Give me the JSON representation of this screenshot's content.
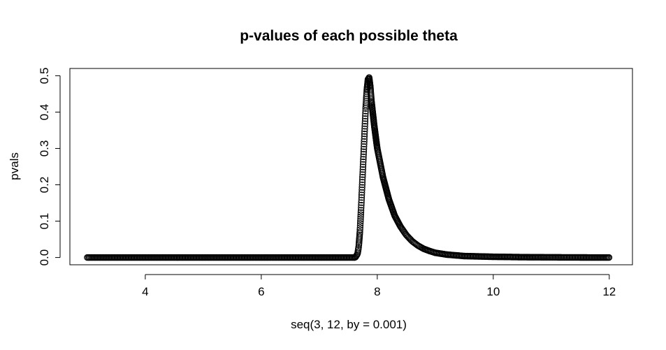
{
  "chart_data": {
    "type": "scatter",
    "title": "p-values of each possible theta",
    "xlabel": "seq(3, 12, by = 0.001)",
    "ylabel": "pvals",
    "xlim": [
      2.7,
      12.4
    ],
    "ylim": [
      -0.02,
      0.52
    ],
    "x_ticks": [
      4,
      6,
      8,
      10,
      12
    ],
    "y_ticks": [
      0.0,
      0.1,
      0.2,
      0.3,
      0.4,
      0.5
    ],
    "x_tick_labels": [
      "4",
      "6",
      "8",
      "10",
      "12"
    ],
    "y_tick_labels": [
      "0.0",
      "0.1",
      "0.2",
      "0.3",
      "0.4",
      "0.5"
    ],
    "grid": false,
    "legend": "none",
    "marker": "open-circle",
    "color": "#000000",
    "points": [
      [
        3.0,
        0.0
      ],
      [
        4.0,
        0.0
      ],
      [
        5.0,
        0.0
      ],
      [
        6.0,
        0.0
      ],
      [
        7.0,
        0.0
      ],
      [
        7.5,
        0.0
      ],
      [
        7.62,
        0.0
      ],
      [
        7.66,
        0.01
      ],
      [
        7.68,
        0.03
      ],
      [
        7.7,
        0.07
      ],
      [
        7.72,
        0.13
      ],
      [
        7.74,
        0.2
      ],
      [
        7.76,
        0.27
      ],
      [
        7.78,
        0.34
      ],
      [
        7.8,
        0.41
      ],
      [
        7.82,
        0.46
      ],
      [
        7.84,
        0.49
      ],
      [
        7.86,
        0.495
      ],
      [
        7.88,
        0.47
      ],
      [
        7.9,
        0.43
      ],
      [
        7.95,
        0.36
      ],
      [
        8.0,
        0.3
      ],
      [
        8.1,
        0.22
      ],
      [
        8.2,
        0.16
      ],
      [
        8.3,
        0.115
      ],
      [
        8.4,
        0.085
      ],
      [
        8.5,
        0.062
      ],
      [
        8.6,
        0.045
      ],
      [
        8.7,
        0.033
      ],
      [
        8.8,
        0.024
      ],
      [
        8.9,
        0.018
      ],
      [
        9.0,
        0.013
      ],
      [
        9.2,
        0.008
      ],
      [
        9.5,
        0.004
      ],
      [
        10.0,
        0.002
      ],
      [
        10.5,
        0.001
      ],
      [
        11.0,
        0.0005
      ],
      [
        11.5,
        0.0002
      ],
      [
        12.0,
        0.0
      ]
    ]
  }
}
